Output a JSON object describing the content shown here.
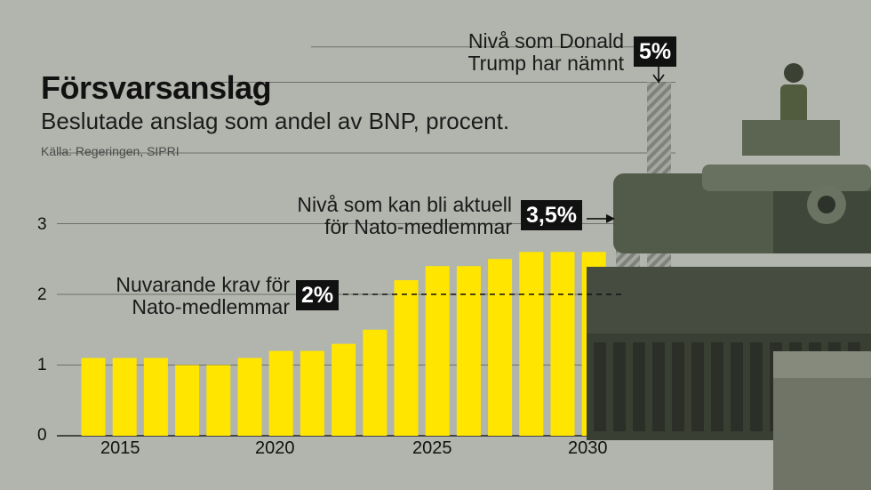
{
  "title": "Försvarsanslag",
  "subtitle": "Beslutade anslag som andel av BNP, procent.",
  "source": "Källa: Regeringen, SIPRI",
  "annotations": {
    "trump_text_1": "Nivå som Donald",
    "trump_text_2": "Trump har nämnt",
    "trump_badge": "5%",
    "nato_future_text_1": "Nivå som kan bli aktuell",
    "nato_future_text_2": "för Nato-medlemmar",
    "nato_future_badge": "3,5%",
    "nato_current_text_1": "Nuvarande krav för",
    "nato_current_text_2": "Nato-medlemmar",
    "nato_current_badge": "2%"
  },
  "colors": {
    "bar": "#ffe500",
    "background": "#b2b5ad",
    "badge": "#111111",
    "hatch": "#8e918a"
  },
  "chart_data": {
    "type": "bar",
    "title": "Försvarsanslag",
    "subtitle": "Beslutade anslag som andel av BNP, procent.",
    "categories": [
      2014,
      2015,
      2016,
      2017,
      2018,
      2019,
      2020,
      2021,
      2022,
      2023,
      2024,
      2025,
      2026,
      2027,
      2028,
      2029,
      2030
    ],
    "values": [
      1.1,
      1.1,
      1.1,
      1.0,
      1.0,
      1.1,
      1.2,
      1.2,
      1.3,
      1.5,
      2.2,
      2.4,
      2.4,
      2.5,
      2.6,
      2.6,
      2.6
    ],
    "x_ticks": [
      "2015",
      "2020",
      "2025",
      "2030"
    ],
    "y_ticks": [
      "0",
      "1",
      "2",
      "3"
    ],
    "ylim": [
      0,
      5
    ],
    "reference_levels": [
      {
        "value": 2,
        "label": "2%"
      },
      {
        "value": 3.5,
        "label": "3,5%"
      },
      {
        "value": 5,
        "label": "5%"
      }
    ],
    "grid": true,
    "legend": "none"
  },
  "image": {
    "photo": "tank-with-soldier"
  }
}
